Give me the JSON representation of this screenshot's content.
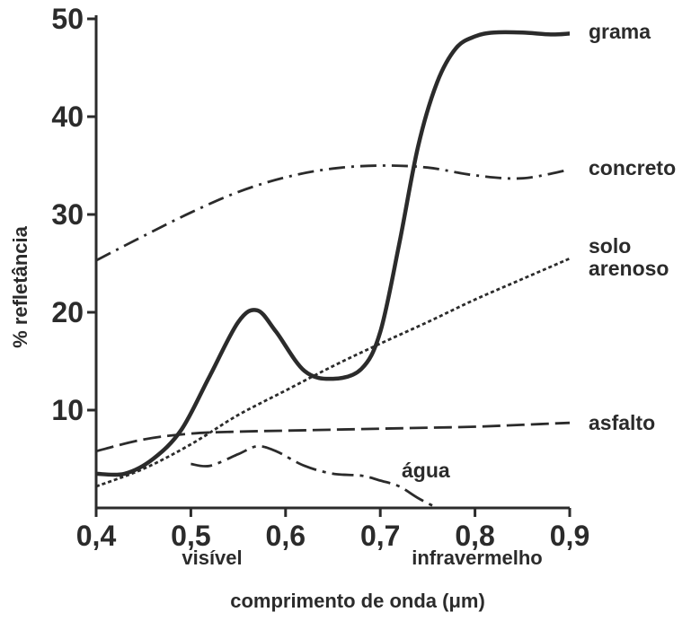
{
  "chart_data": {
    "type": "line",
    "title": "",
    "xlabel": "comprimento de onda (μm)",
    "ylabel": "% refletância",
    "xlim": [
      0.4,
      0.9
    ],
    "ylim": [
      0,
      50
    ],
    "x_ticks": [
      "0,4",
      "0,5",
      "0,6",
      "0,7",
      "0,8",
      "0,9"
    ],
    "y_ticks": [
      "10",
      "20",
      "30",
      "40",
      "50"
    ],
    "regions": [
      "visível",
      "infravermelho"
    ],
    "grid": false,
    "series": [
      {
        "name": "grama",
        "style": "solid",
        "x": [
          0.4,
          0.43,
          0.46,
          0.49,
          0.52,
          0.55,
          0.57,
          0.59,
          0.62,
          0.65,
          0.68,
          0.7,
          0.72,
          0.74,
          0.76,
          0.78,
          0.8,
          0.82,
          0.85,
          0.88,
          0.9
        ],
        "y": [
          3.5,
          3.5,
          5.0,
          8.0,
          13.5,
          19.0,
          20.2,
          18.0,
          14.0,
          13.2,
          14.2,
          18.0,
          27.0,
          37.0,
          43.5,
          47.0,
          48.2,
          48.6,
          48.6,
          48.4,
          48.5
        ]
      },
      {
        "name": "concreto",
        "style": "dash-dot",
        "x": [
          0.4,
          0.45,
          0.5,
          0.55,
          0.6,
          0.65,
          0.7,
          0.75,
          0.8,
          0.85,
          0.9
        ],
        "y": [
          25.3,
          27.8,
          30.2,
          32.3,
          33.8,
          34.7,
          35.0,
          34.8,
          34.0,
          33.7,
          34.6
        ]
      },
      {
        "name": "solo arenoso",
        "style": "dotted",
        "x": [
          0.4,
          0.45,
          0.5,
          0.55,
          0.6,
          0.65,
          0.7,
          0.75,
          0.8,
          0.85,
          0.9
        ],
        "y": [
          2.2,
          4.0,
          6.5,
          9.5,
          12.0,
          14.5,
          16.8,
          19.0,
          21.3,
          23.4,
          25.5
        ]
      },
      {
        "name": "asfalto",
        "style": "dashed",
        "x": [
          0.4,
          0.45,
          0.5,
          0.55,
          0.6,
          0.65,
          0.7,
          0.75,
          0.8,
          0.85,
          0.9
        ],
        "y": [
          5.8,
          7.0,
          7.6,
          7.8,
          7.9,
          8.0,
          8.1,
          8.2,
          8.3,
          8.5,
          8.7
        ]
      },
      {
        "name": "água",
        "style": "long-dash-dot",
        "x": [
          0.5,
          0.52,
          0.55,
          0.57,
          0.59,
          0.62,
          0.65,
          0.68,
          0.7,
          0.72,
          0.74,
          0.76
        ],
        "y": [
          4.5,
          4.3,
          5.5,
          6.3,
          5.8,
          4.3,
          3.5,
          3.3,
          2.8,
          2.2,
          1.0,
          0.0
        ]
      }
    ],
    "colors": {
      "line": "#2b2b2b",
      "background": "#ffffff"
    }
  }
}
